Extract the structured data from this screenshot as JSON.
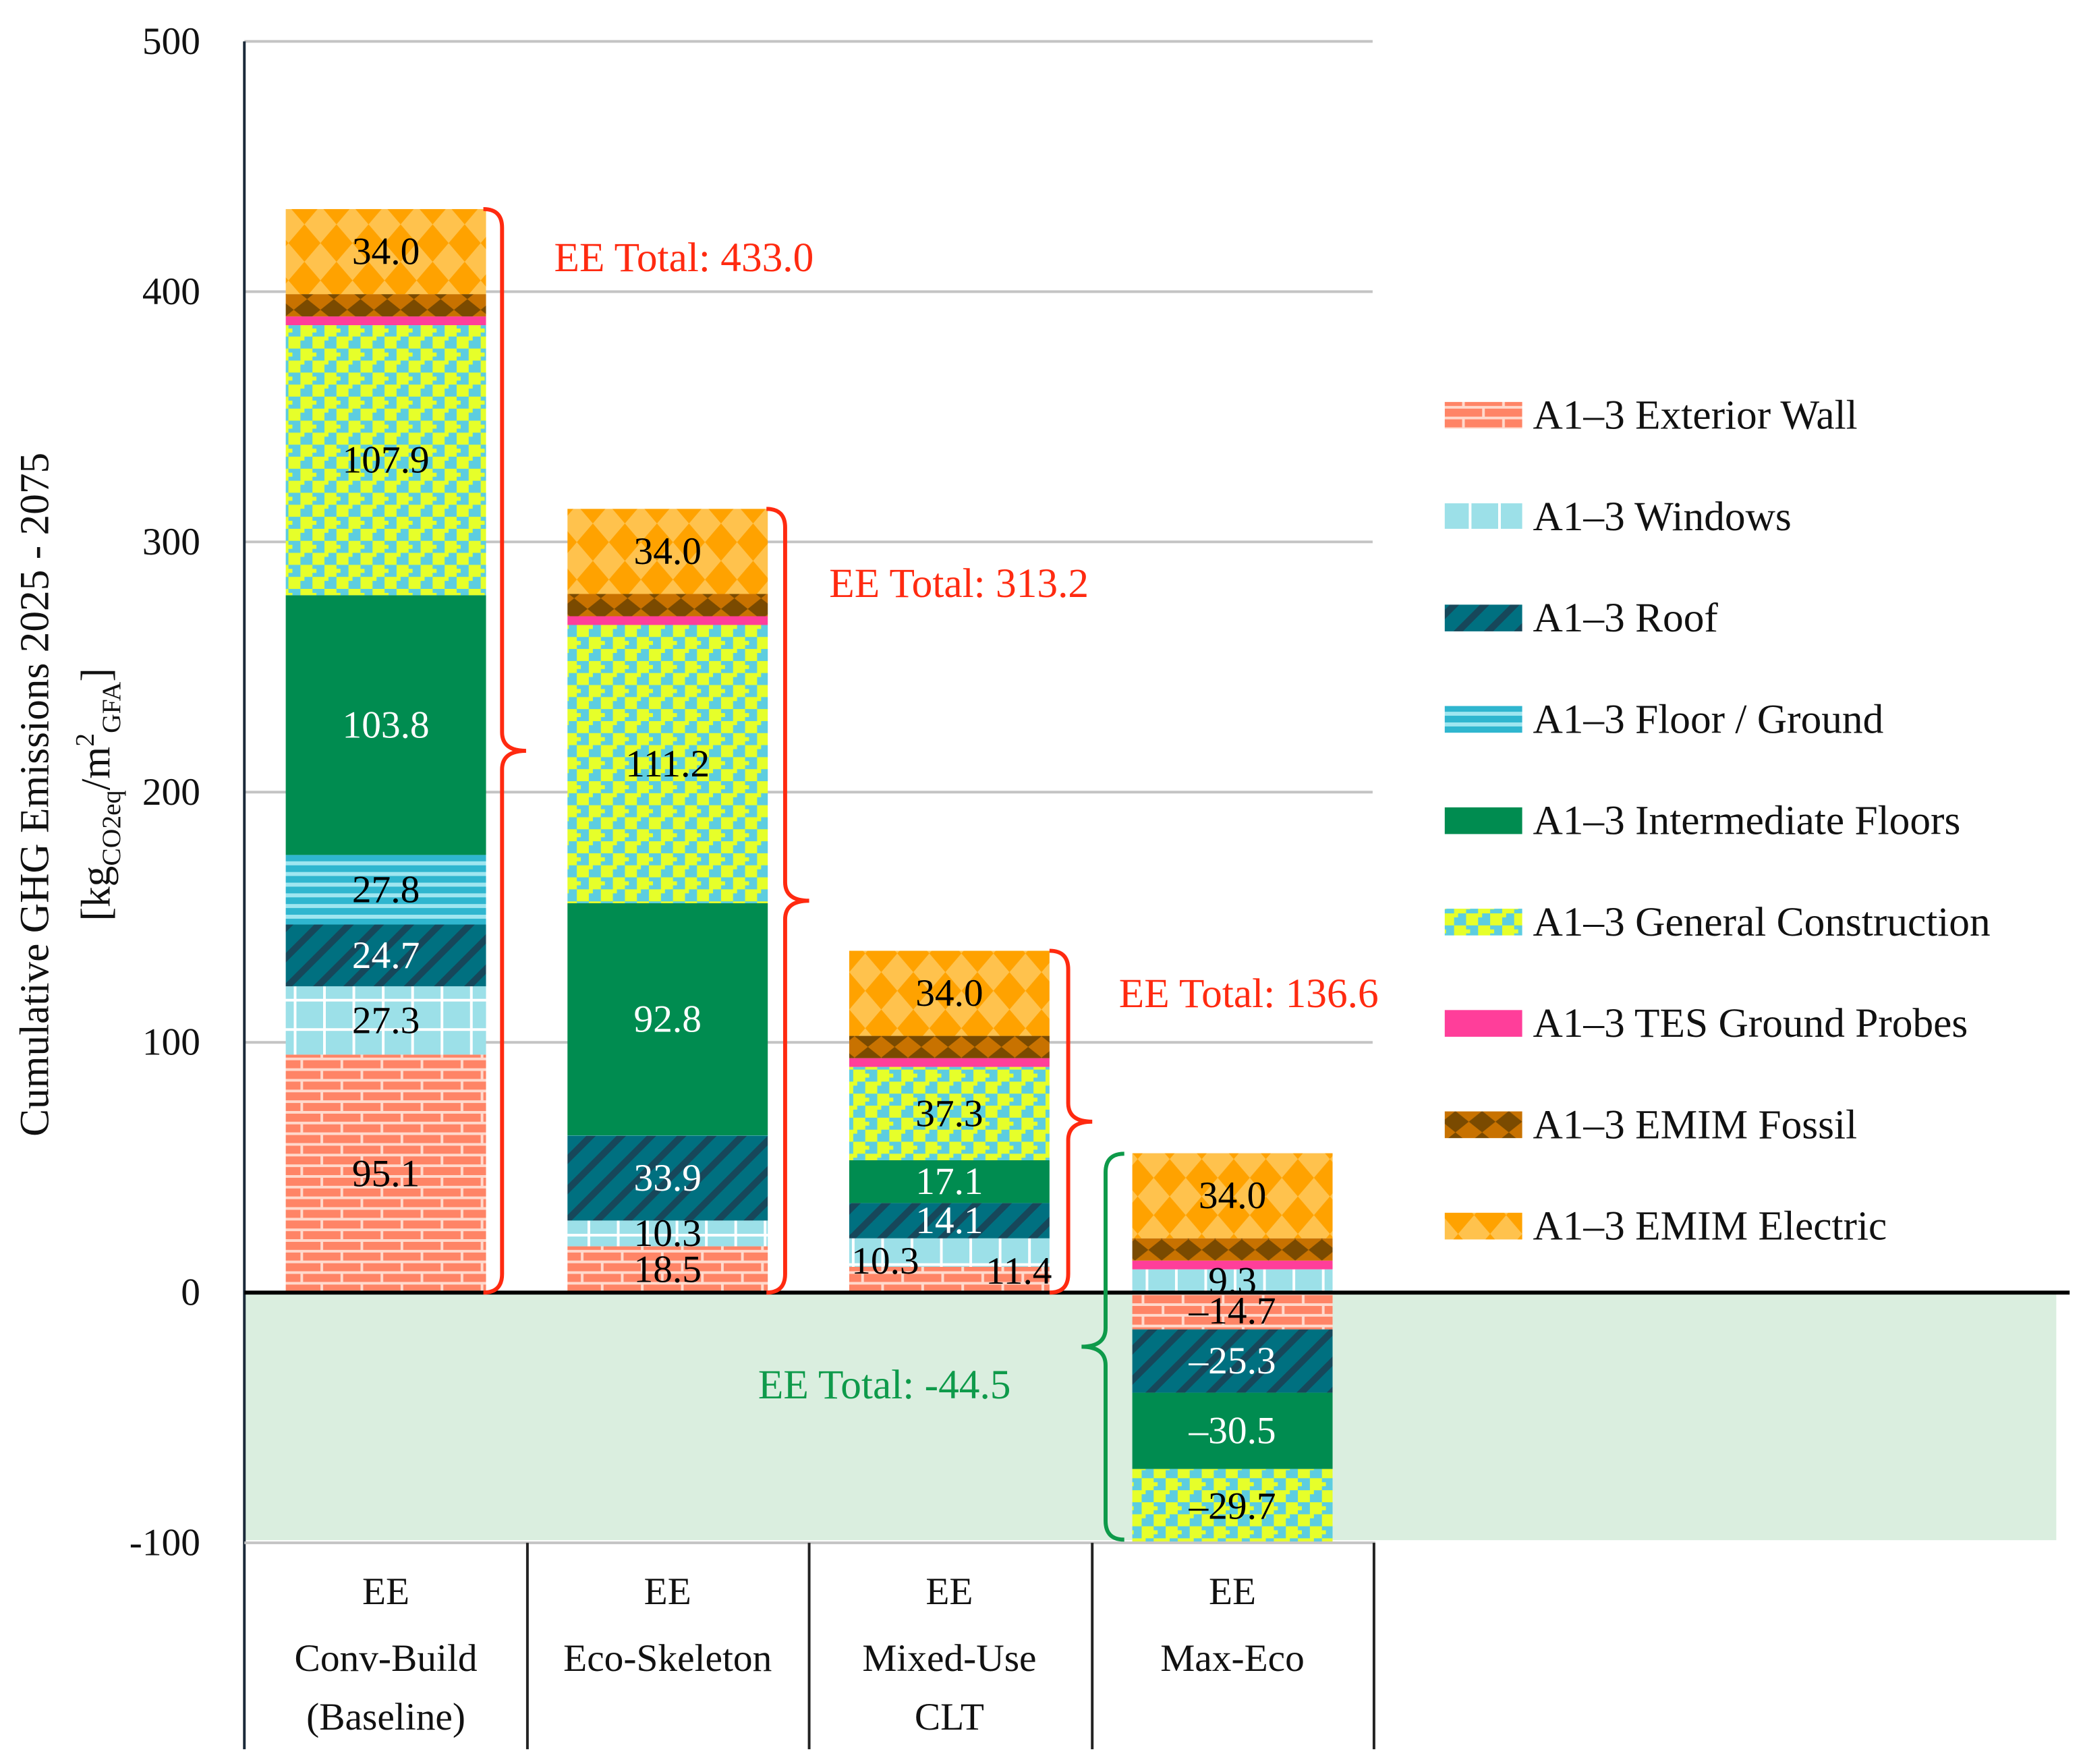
{
  "chart_data": {
    "type": "bar",
    "stacked": true,
    "ylabel": "Cumulative GHG Emissions 2025 - 2075",
    "ylabel_unit": {
      "open": "[kg",
      "sub1": "CO2eq",
      "mid": "/m",
      "sup": "2",
      "sub2": "GFA",
      "close": "]"
    },
    "ylim": [
      -100,
      500
    ],
    "yticks": [
      -100,
      0,
      100,
      200,
      300,
      400,
      500
    ],
    "grid": true,
    "legend_position": "right",
    "categories": [
      [
        "EE",
        "Conv-Build",
        "(Baseline)"
      ],
      [
        "EE",
        "Eco-Skeleton"
      ],
      [
        "EE",
        "Mixed-Use",
        "CLT"
      ],
      [
        "EE",
        "Max-Eco"
      ]
    ],
    "series": [
      {
        "name": "A1–3  Exterior Wall",
        "pattern": "brick",
        "color": "#FF8466",
        "values": [
          95.1,
          18.5,
          10.3,
          -14.7
        ],
        "labels": [
          "95.1",
          "18.5",
          "10.3",
          "–14.7"
        ],
        "label_color": "#000000"
      },
      {
        "name": "A1–3  Windows",
        "pattern": "windows",
        "color": "#9CE0E8",
        "values": [
          27.3,
          10.3,
          11.4,
          9.3
        ],
        "labels": [
          "27.3",
          "10.3",
          "11.4",
          "9.3"
        ],
        "label_color": "#000000"
      },
      {
        "name": "A1–3  Roof",
        "pattern": "roof",
        "color": "#007080",
        "values": [
          24.7,
          33.9,
          14.1,
          -25.3
        ],
        "labels": [
          "24.7",
          "33.9",
          "14.1",
          "–25.3"
        ],
        "label_color": "#FFFFFF"
      },
      {
        "name": "A1–3  Floor / Ground",
        "pattern": "floor",
        "color": "#3CC0D8",
        "values": [
          27.8,
          0.1,
          0,
          0
        ],
        "labels": [
          "27.8",
          null,
          null,
          null
        ],
        "label_color": "#000000"
      },
      {
        "name": "A1–3  Intermediate Floors",
        "pattern": "solid",
        "color": "#008C50",
        "values": [
          103.8,
          92.8,
          17.1,
          -30.5
        ],
        "labels": [
          "103.8",
          "92.8",
          "17.1",
          "–30.5"
        ],
        "label_color": "#FFFFFF"
      },
      {
        "name": "A1–3 General Construction",
        "pattern": "general",
        "color": "#E6FF2A",
        "values": [
          107.9,
          111.2,
          37.3,
          -29.7
        ],
        "labels": [
          "107.9",
          "111.2",
          "37.3",
          "–29.7"
        ],
        "label_color": "#000000"
      },
      {
        "name": "A1–3 TES Ground Probes",
        "pattern": "solid",
        "color": "#FF3E9A",
        "values": [
          3.5,
          3.5,
          3.5,
          3.5
        ],
        "labels": [
          null,
          null,
          null,
          null
        ],
        "label_color": "#000000"
      },
      {
        "name": "A1–3 EMIM Fossil",
        "pattern": "fossil",
        "color": "#C87200",
        "values": [
          8.9,
          8.9,
          8.9,
          8.9
        ],
        "labels": [
          null,
          null,
          null,
          null
        ],
        "label_color": "#000000"
      },
      {
        "name": "A1–3 EMIM Electric",
        "pattern": "electric",
        "color": "#FFC24D",
        "values": [
          34.0,
          34.0,
          34.0,
          34.0
        ],
        "labels": [
          "34.0",
          "34.0",
          "34.0",
          "34.0"
        ],
        "label_color": "#000000"
      }
    ],
    "annotations": [
      {
        "text": "EE Total: 433.0",
        "value": 433.0,
        "color": "#FF2A10"
      },
      {
        "text": "EE Total: 313.2",
        "value": 313.2,
        "color": "#FF2A10"
      },
      {
        "text": "EE Total: 136.6",
        "value": 136.6,
        "color": "#FF2A10"
      },
      {
        "text": "EE Total: -44.5",
        "value": -44.5,
        "color": "#0E9A4A"
      }
    ],
    "negative_region_color": "#DAEEDF"
  }
}
